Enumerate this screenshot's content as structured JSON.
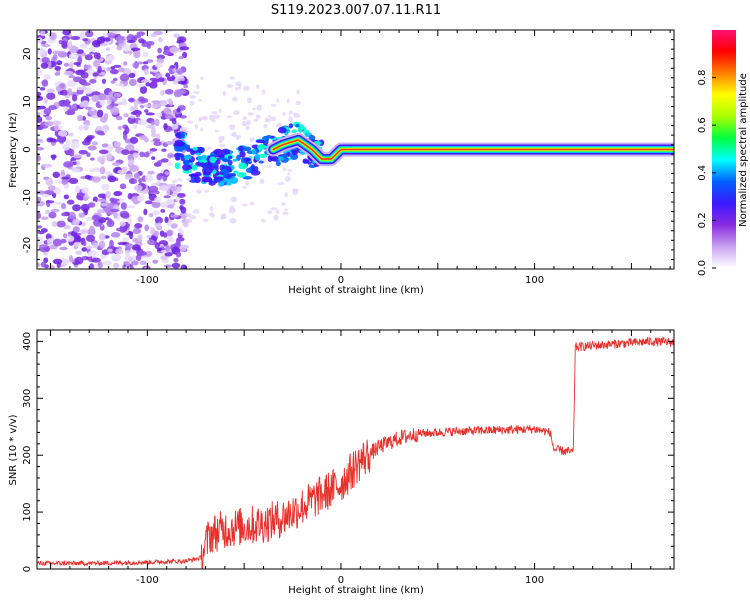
{
  "title": "S119.2023.007.07.11.R11",
  "chart_data": [
    {
      "type": "heatmap",
      "xlabel": "Height of straight line (km)",
      "ylabel": "Frequency (Hz)",
      "xlim": [
        -157,
        172
      ],
      "ylim": [
        -25,
        25
      ],
      "xticks": [
        -100,
        0,
        100
      ],
      "yticks": [
        -20,
        -10,
        0,
        10,
        20
      ],
      "colorbar": {
        "label": "Normalized spectral amplitude",
        "range": [
          0,
          1
        ],
        "ticks": [
          "0.0",
          "0.2",
          "0.4",
          "0.6",
          "0.8"
        ],
        "colors": [
          "#ffffff",
          "#c8a0f0",
          "#8a2be2",
          "#3a1aff",
          "#0060ff",
          "#00ffff",
          "#00ff40",
          "#a8ff00",
          "#ffff00",
          "#ff8000",
          "#ff0000",
          "#ff1070"
        ]
      },
      "ridge": {
        "description_points_x_km": [
          -80,
          -60,
          -45,
          -30,
          -22,
          -15,
          -10,
          -5,
          0,
          5,
          10,
          50,
          100,
          150,
          170
        ],
        "frequency_hz": [
          -3,
          -4,
          -2,
          1,
          2,
          0,
          -2,
          -2,
          0,
          0,
          0,
          0,
          0,
          0,
          0
        ]
      },
      "grid": false
    },
    {
      "type": "line",
      "xlabel": "Height of straight line (km)",
      "ylabel": "SNR (10 * v/v)",
      "xlim": [
        -157,
        172
      ],
      "ylim": [
        0,
        420
      ],
      "xticks": [
        -100,
        0,
        100
      ],
      "yticks": [
        0,
        100,
        200,
        300,
        400
      ],
      "series": [
        {
          "color": "#e8302a",
          "x": [
            -157,
            -130,
            -100,
            -80,
            -72,
            -68,
            -60,
            -50,
            -40,
            -30,
            -20,
            -10,
            0,
            10,
            20,
            30,
            40,
            60,
            80,
            100,
            108,
            110,
            120,
            121,
            140,
            160,
            172
          ],
          "y": [
            10,
            10,
            12,
            14,
            20,
            60,
            70,
            75,
            80,
            90,
            110,
            130,
            150,
            190,
            215,
            230,
            238,
            242,
            244,
            246,
            240,
            210,
            205,
            390,
            395,
            400,
            398
          ]
        }
      ],
      "grid": false
    }
  ]
}
